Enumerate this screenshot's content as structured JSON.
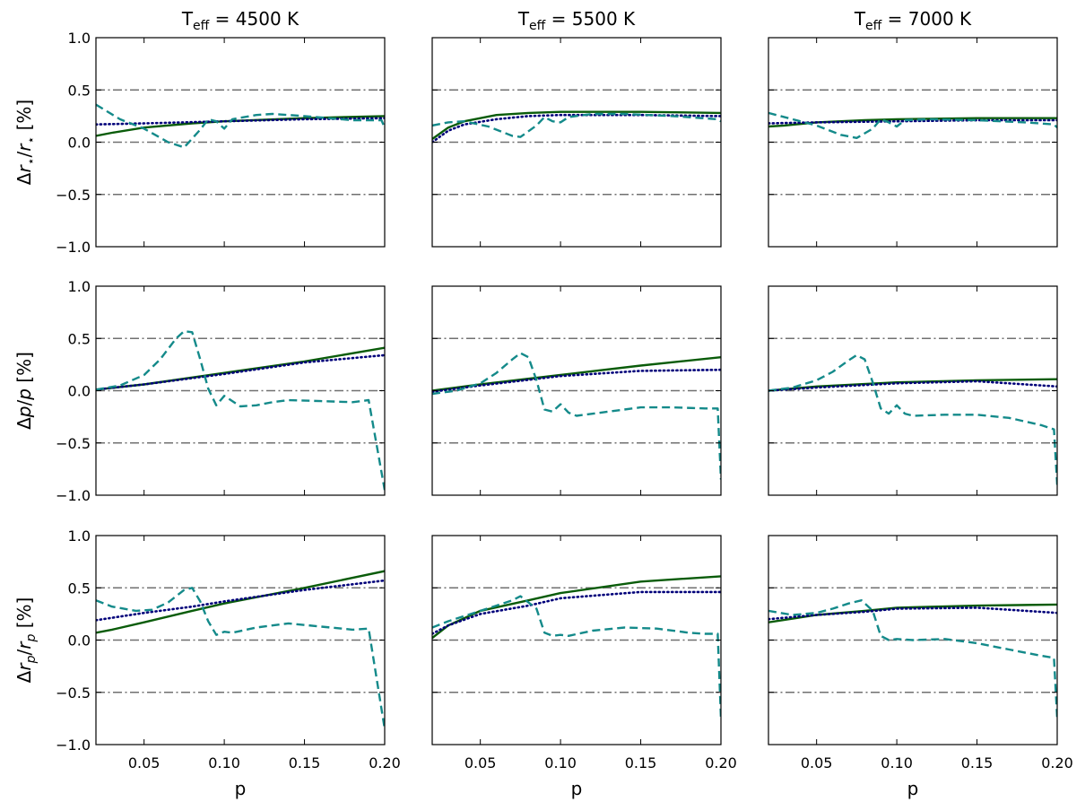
{
  "chart_data": {
    "type": "line",
    "layout": "grid",
    "rows": 3,
    "columns": 3,
    "column_titles": [
      {
        "base": "T",
        "sub": "eff",
        "rest": " = 4500 K"
      },
      {
        "base": "T",
        "sub": "eff",
        "rest": " = 5500 K"
      },
      {
        "base": "T",
        "sub": "eff",
        "rest": " = 7000 K"
      }
    ],
    "row_ylabels": [
      {
        "delta": "Δ",
        "num": "r",
        "num_sub": "⋆",
        "den": "r",
        "den_sub": "⋆",
        "unit": " [%]"
      },
      {
        "delta": "Δ",
        "num": "p",
        "num_sub": "",
        "den": "p",
        "den_sub": "",
        "unit": " [%]"
      },
      {
        "delta": "Δ",
        "num": "r",
        "num_sub": "p",
        "den": "r",
        "den_sub": "p",
        "unit": " [%]"
      }
    ],
    "xlabel": "p",
    "xlim": [
      0.02,
      0.2
    ],
    "ylim": [
      -1.0,
      1.0
    ],
    "xticks": [
      0.05,
      0.1,
      0.15,
      0.2
    ],
    "xtick_labels": [
      "0.05",
      "0.10",
      "0.15",
      "0.20"
    ],
    "yticks": [
      -1.0,
      -0.5,
      0.0,
      0.5,
      1.0
    ],
    "ytick_labels": [
      "−1.0",
      "−0.5",
      "0.0",
      "0.5",
      "1.0"
    ],
    "reference_lines": [
      -0.5,
      0.0,
      0.5
    ],
    "reference_line_style": "dash-dot",
    "reference_line_color": "#707070",
    "grid": false,
    "legend": "none",
    "series_styles": [
      {
        "key": "solid",
        "color": "#0a5c0a",
        "dash": "solid"
      },
      {
        "key": "dotted",
        "color": "#00007a",
        "dash": "dotted"
      },
      {
        "key": "dashed",
        "color": "#148a8a",
        "dash": "dashed"
      }
    ],
    "panels": [
      {
        "row": 0,
        "col": 0,
        "solid": [
          [
            0.02,
            0.06
          ],
          [
            0.03,
            0.09
          ],
          [
            0.05,
            0.14
          ],
          [
            0.08,
            0.18
          ],
          [
            0.1,
            0.2
          ],
          [
            0.15,
            0.23
          ],
          [
            0.2,
            0.25
          ]
        ],
        "dotted": [
          [
            0.02,
            0.17
          ],
          [
            0.05,
            0.18
          ],
          [
            0.1,
            0.2
          ],
          [
            0.15,
            0.22
          ],
          [
            0.2,
            0.23
          ]
        ],
        "dashed": [
          [
            0.02,
            0.36
          ],
          [
            0.035,
            0.22
          ],
          [
            0.05,
            0.13
          ],
          [
            0.065,
            0.0
          ],
          [
            0.075,
            -0.05
          ],
          [
            0.085,
            0.12
          ],
          [
            0.09,
            0.22
          ],
          [
            0.095,
            0.2
          ],
          [
            0.1,
            0.13
          ],
          [
            0.105,
            0.22
          ],
          [
            0.12,
            0.26
          ],
          [
            0.13,
            0.27
          ],
          [
            0.15,
            0.25
          ],
          [
            0.18,
            0.21
          ],
          [
            0.198,
            0.21
          ],
          [
            0.2,
            0.14
          ]
        ]
      },
      {
        "row": 0,
        "col": 1,
        "solid": [
          [
            0.02,
            0.03
          ],
          [
            0.03,
            0.14
          ],
          [
            0.04,
            0.2
          ],
          [
            0.06,
            0.26
          ],
          [
            0.08,
            0.28
          ],
          [
            0.1,
            0.29
          ],
          [
            0.15,
            0.29
          ],
          [
            0.2,
            0.28
          ]
        ],
        "dotted": [
          [
            0.02,
            0.0
          ],
          [
            0.03,
            0.11
          ],
          [
            0.04,
            0.17
          ],
          [
            0.06,
            0.22
          ],
          [
            0.08,
            0.25
          ],
          [
            0.1,
            0.26
          ],
          [
            0.15,
            0.26
          ],
          [
            0.2,
            0.25
          ]
        ],
        "dashed": [
          [
            0.02,
            0.16
          ],
          [
            0.03,
            0.19
          ],
          [
            0.04,
            0.2
          ],
          [
            0.055,
            0.15
          ],
          [
            0.07,
            0.06
          ],
          [
            0.075,
            0.05
          ],
          [
            0.085,
            0.16
          ],
          [
            0.09,
            0.24
          ],
          [
            0.095,
            0.2
          ],
          [
            0.1,
            0.19
          ],
          [
            0.105,
            0.24
          ],
          [
            0.12,
            0.27
          ],
          [
            0.14,
            0.27
          ],
          [
            0.17,
            0.25
          ],
          [
            0.198,
            0.22
          ],
          [
            0.2,
            0.2
          ]
        ]
      },
      {
        "row": 0,
        "col": 2,
        "solid": [
          [
            0.02,
            0.15
          ],
          [
            0.03,
            0.16
          ],
          [
            0.05,
            0.19
          ],
          [
            0.08,
            0.21
          ],
          [
            0.1,
            0.22
          ],
          [
            0.15,
            0.23
          ],
          [
            0.2,
            0.23
          ]
        ],
        "dotted": [
          [
            0.02,
            0.18
          ],
          [
            0.05,
            0.19
          ],
          [
            0.1,
            0.2
          ],
          [
            0.15,
            0.21
          ],
          [
            0.2,
            0.21
          ]
        ],
        "dashed": [
          [
            0.02,
            0.28
          ],
          [
            0.035,
            0.22
          ],
          [
            0.05,
            0.16
          ],
          [
            0.065,
            0.07
          ],
          [
            0.075,
            0.04
          ],
          [
            0.085,
            0.13
          ],
          [
            0.09,
            0.22
          ],
          [
            0.095,
            0.19
          ],
          [
            0.1,
            0.15
          ],
          [
            0.105,
            0.21
          ],
          [
            0.12,
            0.22
          ],
          [
            0.15,
            0.21
          ],
          [
            0.18,
            0.19
          ],
          [
            0.198,
            0.17
          ],
          [
            0.2,
            0.14
          ]
        ]
      },
      {
        "row": 1,
        "col": 0,
        "solid": [
          [
            0.02,
            0.01
          ],
          [
            0.05,
            0.06
          ],
          [
            0.1,
            0.17
          ],
          [
            0.15,
            0.28
          ],
          [
            0.2,
            0.41
          ]
        ],
        "dotted": [
          [
            0.02,
            0.01
          ],
          [
            0.05,
            0.06
          ],
          [
            0.1,
            0.16
          ],
          [
            0.15,
            0.27
          ],
          [
            0.2,
            0.34
          ]
        ],
        "dashed": [
          [
            0.02,
            0.01
          ],
          [
            0.035,
            0.05
          ],
          [
            0.05,
            0.15
          ],
          [
            0.06,
            0.3
          ],
          [
            0.07,
            0.5
          ],
          [
            0.075,
            0.57
          ],
          [
            0.08,
            0.56
          ],
          [
            0.085,
            0.3
          ],
          [
            0.09,
            0.02
          ],
          [
            0.095,
            -0.14
          ],
          [
            0.1,
            -0.05
          ],
          [
            0.105,
            -0.1
          ],
          [
            0.11,
            -0.15
          ],
          [
            0.12,
            -0.14
          ],
          [
            0.13,
            -0.11
          ],
          [
            0.14,
            -0.09
          ],
          [
            0.16,
            -0.1
          ],
          [
            0.18,
            -0.11
          ],
          [
            0.19,
            -0.09
          ],
          [
            0.2,
            -0.95
          ]
        ]
      },
      {
        "row": 1,
        "col": 1,
        "solid": [
          [
            0.02,
            0.0
          ],
          [
            0.05,
            0.06
          ],
          [
            0.1,
            0.15
          ],
          [
            0.15,
            0.24
          ],
          [
            0.2,
            0.32
          ]
        ],
        "dotted": [
          [
            0.02,
            -0.01
          ],
          [
            0.05,
            0.05
          ],
          [
            0.1,
            0.14
          ],
          [
            0.15,
            0.19
          ],
          [
            0.2,
            0.2
          ]
        ],
        "dashed": [
          [
            0.02,
            -0.03
          ],
          [
            0.035,
            0.0
          ],
          [
            0.05,
            0.07
          ],
          [
            0.06,
            0.17
          ],
          [
            0.07,
            0.3
          ],
          [
            0.075,
            0.36
          ],
          [
            0.08,
            0.32
          ],
          [
            0.085,
            0.1
          ],
          [
            0.09,
            -0.18
          ],
          [
            0.095,
            -0.2
          ],
          [
            0.1,
            -0.13
          ],
          [
            0.105,
            -0.21
          ],
          [
            0.11,
            -0.24
          ],
          [
            0.13,
            -0.2
          ],
          [
            0.15,
            -0.16
          ],
          [
            0.17,
            -0.16
          ],
          [
            0.19,
            -0.17
          ],
          [
            0.198,
            -0.17
          ],
          [
            0.2,
            -0.85
          ]
        ]
      },
      {
        "row": 1,
        "col": 2,
        "solid": [
          [
            0.02,
            0.0
          ],
          [
            0.05,
            0.04
          ],
          [
            0.1,
            0.08
          ],
          [
            0.15,
            0.1
          ],
          [
            0.2,
            0.11
          ]
        ],
        "dotted": [
          [
            0.02,
            0.0
          ],
          [
            0.05,
            0.03
          ],
          [
            0.1,
            0.07
          ],
          [
            0.15,
            0.09
          ],
          [
            0.2,
            0.04
          ]
        ],
        "dashed": [
          [
            0.02,
            0.0
          ],
          [
            0.035,
            0.03
          ],
          [
            0.05,
            0.1
          ],
          [
            0.06,
            0.18
          ],
          [
            0.07,
            0.29
          ],
          [
            0.075,
            0.34
          ],
          [
            0.08,
            0.3
          ],
          [
            0.085,
            0.08
          ],
          [
            0.09,
            -0.17
          ],
          [
            0.095,
            -0.22
          ],
          [
            0.1,
            -0.14
          ],
          [
            0.105,
            -0.22
          ],
          [
            0.11,
            -0.24
          ],
          [
            0.13,
            -0.23
          ],
          [
            0.15,
            -0.23
          ],
          [
            0.17,
            -0.26
          ],
          [
            0.19,
            -0.33
          ],
          [
            0.198,
            -0.37
          ],
          [
            0.2,
            -0.9
          ]
        ]
      },
      {
        "row": 2,
        "col": 0,
        "solid": [
          [
            0.02,
            0.07
          ],
          [
            0.03,
            0.1
          ],
          [
            0.05,
            0.17
          ],
          [
            0.08,
            0.28
          ],
          [
            0.1,
            0.35
          ],
          [
            0.15,
            0.5
          ],
          [
            0.2,
            0.66
          ]
        ],
        "dotted": [
          [
            0.02,
            0.19
          ],
          [
            0.05,
            0.26
          ],
          [
            0.08,
            0.32
          ],
          [
            0.1,
            0.37
          ],
          [
            0.15,
            0.48
          ],
          [
            0.2,
            0.57
          ]
        ],
        "dashed": [
          [
            0.02,
            0.38
          ],
          [
            0.03,
            0.32
          ],
          [
            0.045,
            0.28
          ],
          [
            0.055,
            0.29
          ],
          [
            0.065,
            0.36
          ],
          [
            0.075,
            0.48
          ],
          [
            0.08,
            0.5
          ],
          [
            0.085,
            0.37
          ],
          [
            0.09,
            0.18
          ],
          [
            0.095,
            0.05
          ],
          [
            0.1,
            0.08
          ],
          [
            0.105,
            0.07
          ],
          [
            0.12,
            0.12
          ],
          [
            0.14,
            0.16
          ],
          [
            0.16,
            0.13
          ],
          [
            0.18,
            0.1
          ],
          [
            0.19,
            0.11
          ],
          [
            0.2,
            -0.85
          ]
        ]
      },
      {
        "row": 2,
        "col": 1,
        "solid": [
          [
            0.02,
            0.02
          ],
          [
            0.03,
            0.14
          ],
          [
            0.05,
            0.28
          ],
          [
            0.08,
            0.38
          ],
          [
            0.1,
            0.45
          ],
          [
            0.15,
            0.56
          ],
          [
            0.2,
            0.61
          ]
        ],
        "dotted": [
          [
            0.02,
            0.06
          ],
          [
            0.03,
            0.14
          ],
          [
            0.05,
            0.25
          ],
          [
            0.08,
            0.33
          ],
          [
            0.1,
            0.4
          ],
          [
            0.15,
            0.46
          ],
          [
            0.2,
            0.46
          ]
        ],
        "dashed": [
          [
            0.02,
            0.12
          ],
          [
            0.03,
            0.18
          ],
          [
            0.05,
            0.28
          ],
          [
            0.06,
            0.33
          ],
          [
            0.07,
            0.38
          ],
          [
            0.075,
            0.42
          ],
          [
            0.085,
            0.3
          ],
          [
            0.09,
            0.07
          ],
          [
            0.095,
            0.04
          ],
          [
            0.1,
            0.05
          ],
          [
            0.105,
            0.04
          ],
          [
            0.12,
            0.09
          ],
          [
            0.14,
            0.12
          ],
          [
            0.16,
            0.11
          ],
          [
            0.18,
            0.07
          ],
          [
            0.19,
            0.06
          ],
          [
            0.198,
            0.06
          ],
          [
            0.2,
            -0.75
          ]
        ]
      },
      {
        "row": 2,
        "col": 2,
        "solid": [
          [
            0.02,
            0.17
          ],
          [
            0.05,
            0.24
          ],
          [
            0.08,
            0.28
          ],
          [
            0.1,
            0.31
          ],
          [
            0.15,
            0.33
          ],
          [
            0.2,
            0.34
          ]
        ],
        "dotted": [
          [
            0.02,
            0.2
          ],
          [
            0.05,
            0.24
          ],
          [
            0.08,
            0.27
          ],
          [
            0.1,
            0.3
          ],
          [
            0.15,
            0.31
          ],
          [
            0.2,
            0.26
          ]
        ],
        "dashed": [
          [
            0.02,
            0.28
          ],
          [
            0.035,
            0.24
          ],
          [
            0.05,
            0.26
          ],
          [
            0.06,
            0.3
          ],
          [
            0.07,
            0.35
          ],
          [
            0.078,
            0.38
          ],
          [
            0.085,
            0.28
          ],
          [
            0.09,
            0.04
          ],
          [
            0.095,
            0.0
          ],
          [
            0.1,
            0.01
          ],
          [
            0.11,
            0.0
          ],
          [
            0.13,
            0.01
          ],
          [
            0.15,
            -0.03
          ],
          [
            0.17,
            -0.09
          ],
          [
            0.19,
            -0.15
          ],
          [
            0.198,
            -0.17
          ],
          [
            0.2,
            -0.75
          ]
        ]
      }
    ]
  }
}
